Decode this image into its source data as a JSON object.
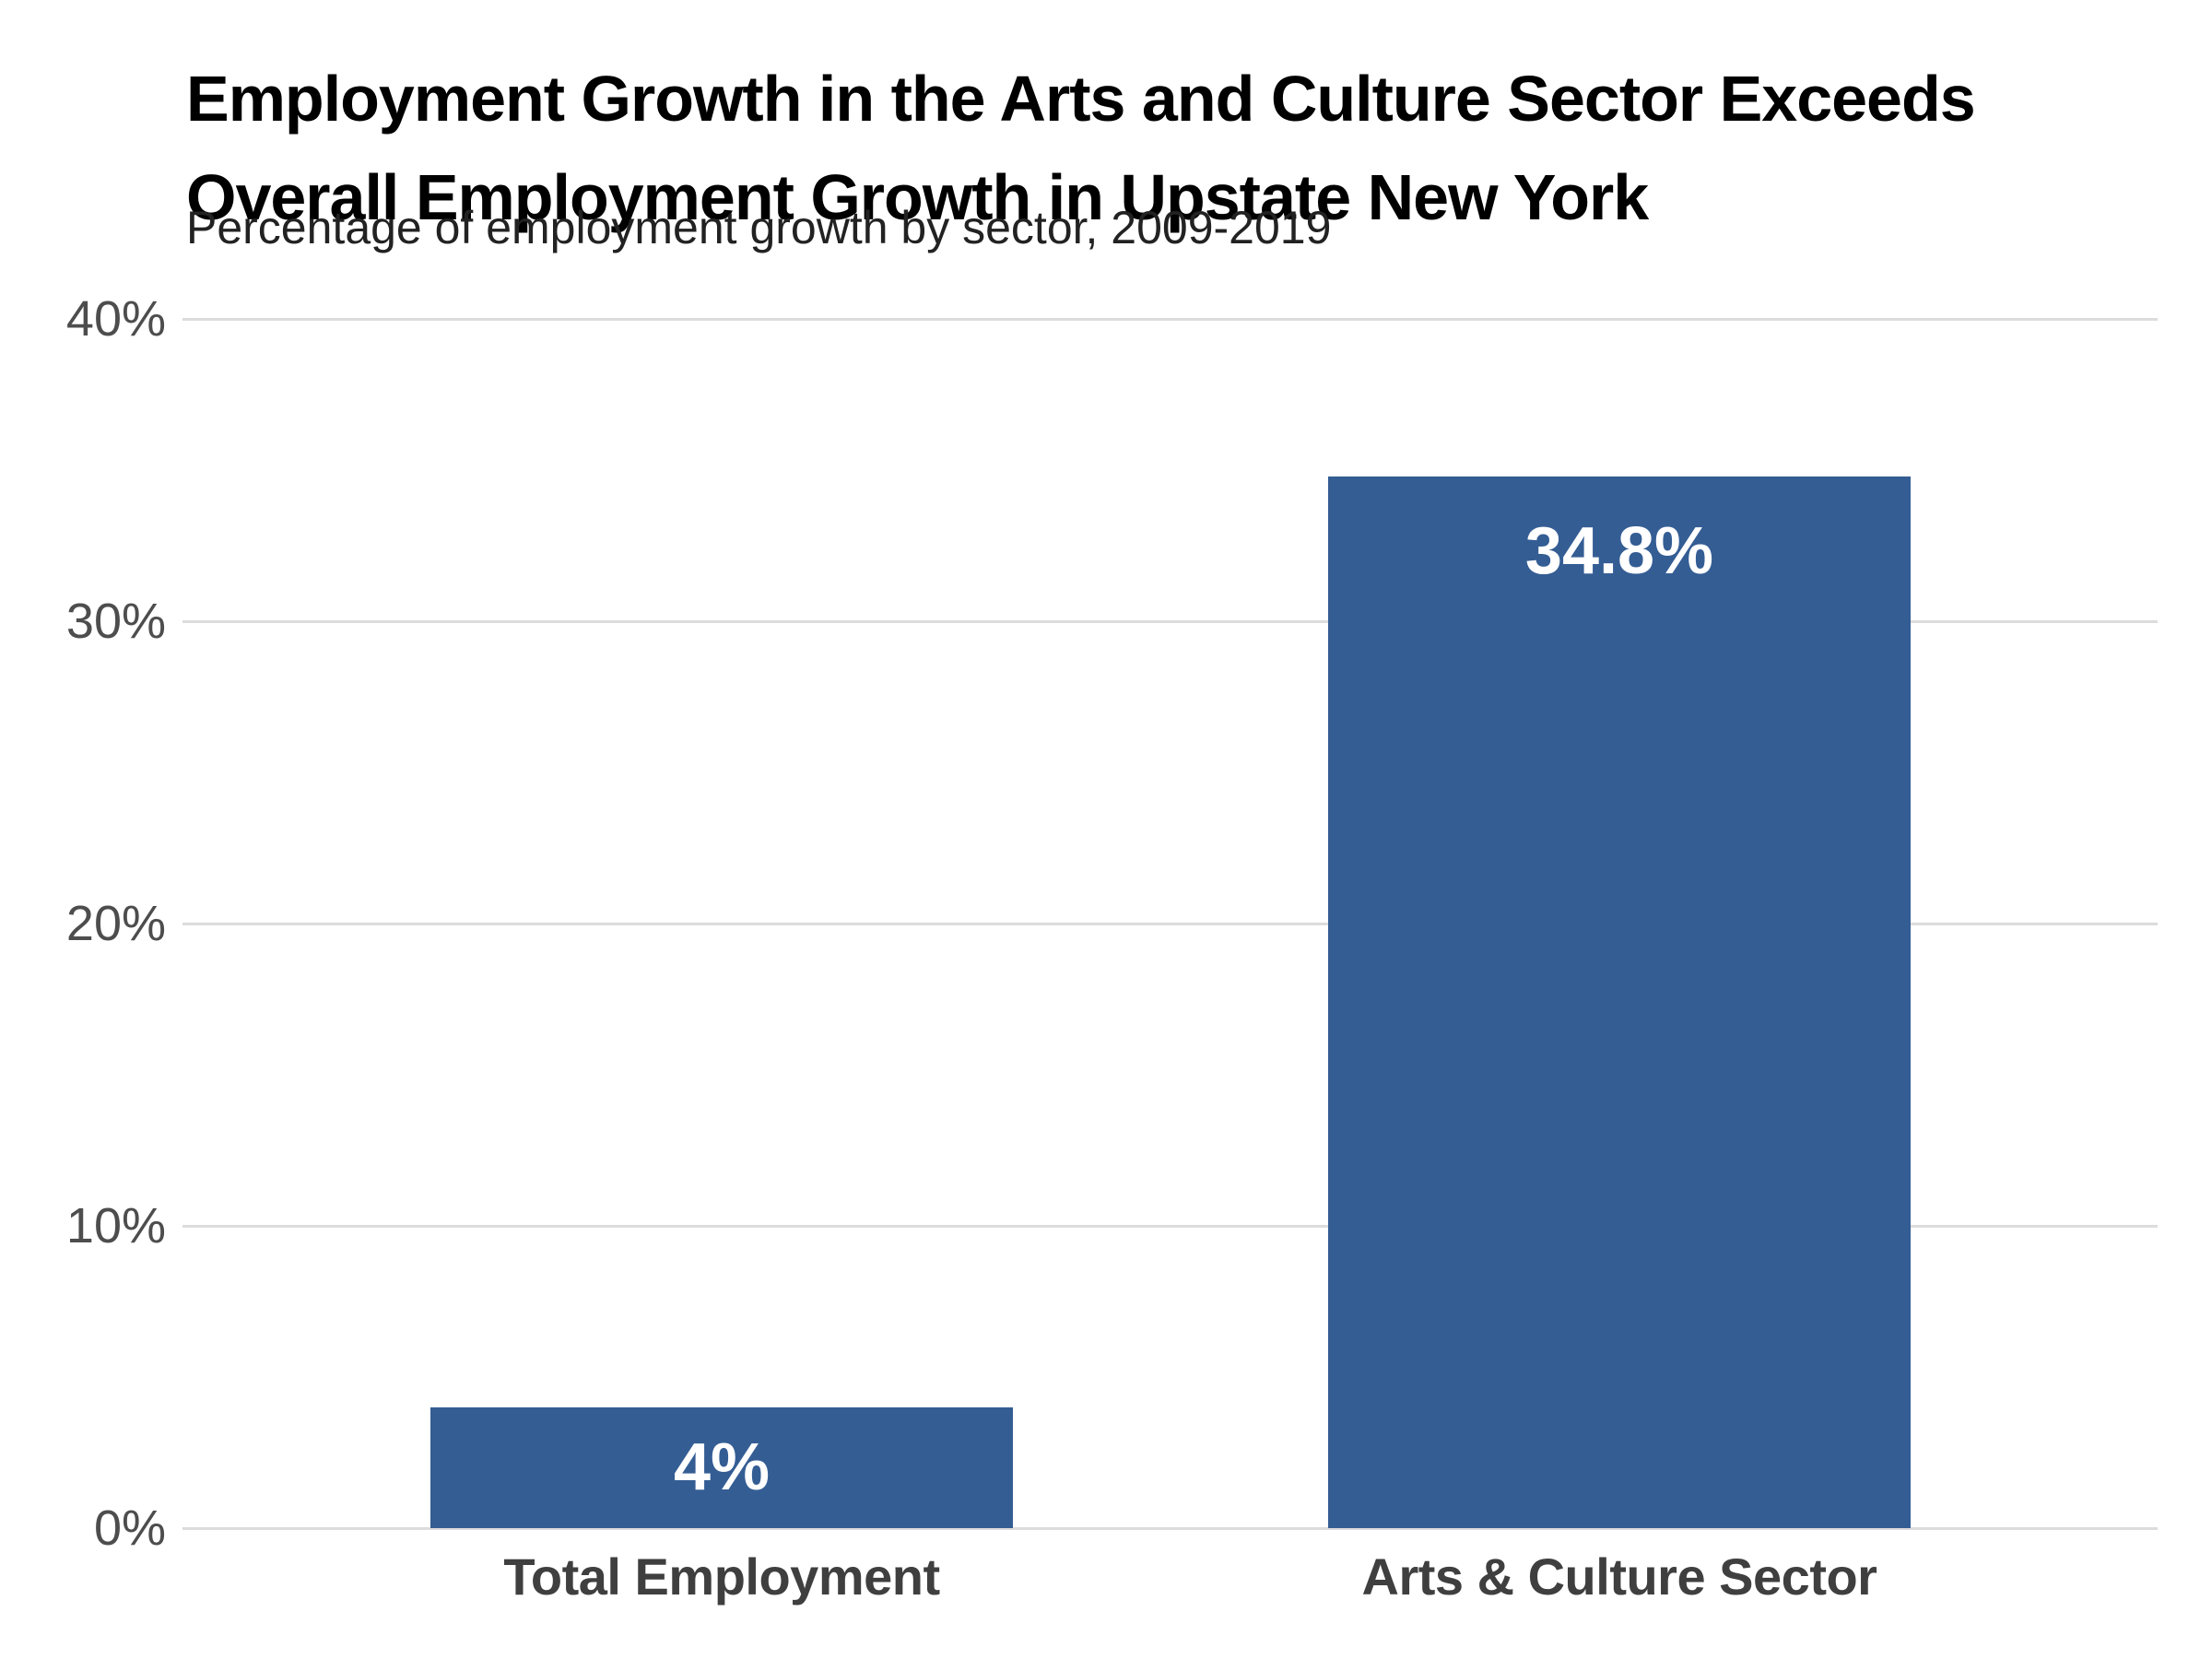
{
  "title": {
    "lines": [
      "Employment Growth in the Arts and Culture Sector Exceeds",
      "Overall Employment Growth in Upstate New York"
    ]
  },
  "subtitle": "Percentage of employment growth by sector, 2009-2019",
  "colors": {
    "bar": "#345d94",
    "gridline": "#dcdcdc",
    "tick_label": "#4d4d4d",
    "category_label": "#3f3f3f",
    "title": "#000000",
    "subtitle": "#222222",
    "value_label": "#ffffff",
    "background": "#ffffff"
  },
  "chart_data": {
    "type": "bar",
    "title": "Employment Growth in the Arts and Culture Sector Exceeds Overall Employment Growth in Upstate New York",
    "subtitle": "Percentage of employment growth by sector, 2009-2019",
    "categories": [
      "Total Employment",
      "Arts & Culture Sector"
    ],
    "values": [
      4,
      34.8
    ],
    "value_labels": [
      "4%",
      "34.8%"
    ],
    "value_label_positions": [
      "center",
      "top"
    ],
    "xlabel": "",
    "ylabel": "",
    "ylim": [
      0,
      40
    ],
    "yticks": [
      0,
      10,
      20,
      30,
      40
    ],
    "ytick_labels": [
      "0%",
      "10%",
      "20%",
      "30%",
      "40%"
    ],
    "grid": "horizontal",
    "legend": "none",
    "bar_color": "#345d94"
  }
}
